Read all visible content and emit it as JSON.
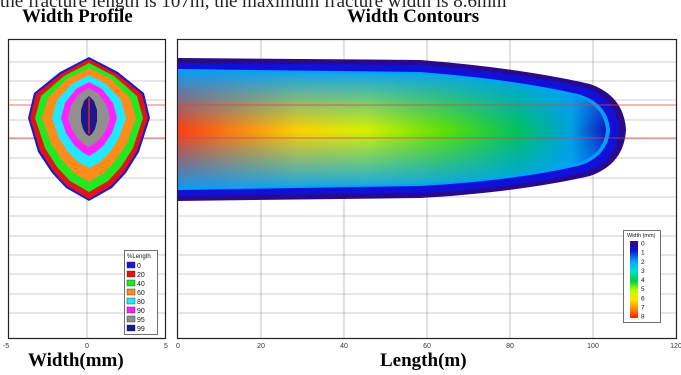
{
  "caption_fragment": "the fracture length is 107m, the maximum fracture width is 8.6mm",
  "chart_data": [
    {
      "type": "contour",
      "title": "Width Profile",
      "xlabel": "Width(mm)",
      "xlim": [
        -5,
        5
      ],
      "x_ticks": [
        "-5",
        "0",
        "5"
      ],
      "grid": true,
      "legend": {
        "title": "%Length",
        "position": "bottom-right",
        "entries": [
          {
            "label": "0",
            "color": "#1a1ad0"
          },
          {
            "label": "20",
            "color": "#e01414"
          },
          {
            "label": "40",
            "color": "#22e822"
          },
          {
            "label": "60",
            "color": "#ff8c1a"
          },
          {
            "label": "80",
            "color": "#22e8ff"
          },
          {
            "label": "90",
            "color": "#ff22ff"
          },
          {
            "label": "95",
            "color": "#909090"
          },
          {
            "label": "99",
            "color": "#1a1a8c"
          }
        ]
      }
    },
    {
      "type": "heatmap",
      "title": "Width Contours",
      "xlabel": "Length(m)",
      "xlim": [
        0,
        120
      ],
      "x_ticks": [
        "0",
        "20",
        "40",
        "60",
        "80",
        "100",
        "120"
      ],
      "grid": true,
      "fracture_length_m": 107,
      "colorbar": {
        "title": "Width (mm)",
        "position": "bottom-right",
        "ticks": [
          "0",
          "1",
          "2",
          "3",
          "4",
          "5",
          "6",
          "7",
          "8"
        ],
        "min": 0,
        "max": 8
      }
    }
  ]
}
